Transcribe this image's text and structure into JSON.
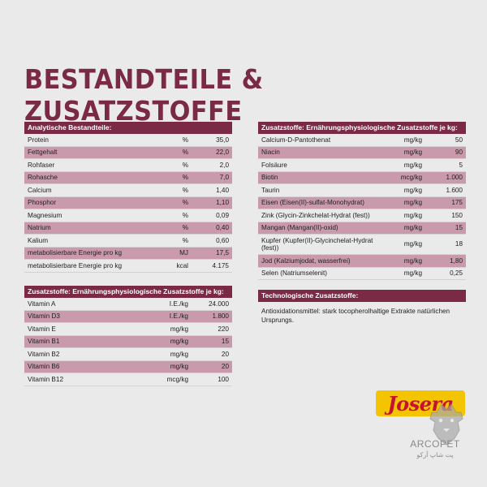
{
  "title": "Bestandteile & Zusatzstoffe",
  "analytic": {
    "header": "Analytische Bestandteile:",
    "rows": [
      {
        "name": "Protein",
        "unit": "%",
        "value": "35,0"
      },
      {
        "name": "Fettgehalt",
        "unit": "%",
        "value": "22,0"
      },
      {
        "name": "Rohfaser",
        "unit": "%",
        "value": "2,0"
      },
      {
        "name": "Rohasche",
        "unit": "%",
        "value": "7,0"
      },
      {
        "name": "Calcium",
        "unit": "%",
        "value": "1,40"
      },
      {
        "name": "Phosphor",
        "unit": "%",
        "value": "1,10"
      },
      {
        "name": "Magnesium",
        "unit": "%",
        "value": "0,09"
      },
      {
        "name": "Natrium",
        "unit": "%",
        "value": "0,40"
      },
      {
        "name": "Kalium",
        "unit": "%",
        "value": "0,60"
      },
      {
        "name": "metabolisierbare Energie pro kg",
        "unit": "MJ",
        "value": "17,5"
      },
      {
        "name": "metabolisierbare Energie pro kg",
        "unit": "kcal",
        "value": "4.175"
      }
    ]
  },
  "vitamins": {
    "header": "Zusatzstoffe: Ernährungsphysiologische Zusatzstoffe je kg:",
    "rows": [
      {
        "name": "Vitamin A",
        "unit": "I.E./kg",
        "value": "24.000"
      },
      {
        "name": "Vitamin D3",
        "unit": "I.E./kg",
        "value": "1.800"
      },
      {
        "name": "Vitamin E",
        "unit": "mg/kg",
        "value": "220"
      },
      {
        "name": "Vitamin B1",
        "unit": "mg/kg",
        "value": "15"
      },
      {
        "name": "Vitamin B2",
        "unit": "mg/kg",
        "value": "20"
      },
      {
        "name": "Vitamin B6",
        "unit": "mg/kg",
        "value": "20"
      },
      {
        "name": "Vitamin B12",
        "unit": "mcg/kg",
        "value": "100"
      }
    ]
  },
  "minerals": {
    "header": "Zusatzstoffe: Ernährungsphysiologische Zusatzstoffe je kg:",
    "rows": [
      {
        "name": "Calcium-D-Pantothenat",
        "unit": "mg/kg",
        "value": "50"
      },
      {
        "name": "Niacin",
        "unit": "mg/kg",
        "value": "90"
      },
      {
        "name": "Folsäure",
        "unit": "mg/kg",
        "value": "5"
      },
      {
        "name": "Biotin",
        "unit": "mcg/kg",
        "value": "1.000"
      },
      {
        "name": "Taurin",
        "unit": "mg/kg",
        "value": "1.600"
      },
      {
        "name": "Eisen (Eisen(II)-sulfat-Monohydrat)",
        "unit": "mg/kg",
        "value": "175"
      },
      {
        "name": "Zink (Glycin-Zinkchelat-Hydrat (fest))",
        "unit": "mg/kg",
        "value": "150"
      },
      {
        "name": "Mangan (Mangan(II)-oxid)",
        "unit": "mg/kg",
        "value": "15"
      },
      {
        "name": "Kupfer (Kupfer(II)-Glycinchelat-Hydrat (fest))",
        "unit": "mg/kg",
        "value": "18"
      },
      {
        "name": "Jod (Kalziumjodat, wasserfrei)",
        "unit": "mg/kg",
        "value": "1,80"
      },
      {
        "name": "Selen (Natriumselenit)",
        "unit": "mg/kg",
        "value": "0,25"
      }
    ]
  },
  "technological": {
    "header": "Technologische Zusatzstoffe:",
    "text": "Antioxidationsmittel: stark tocopherolhaltige Extrakte natürlichen Ursprungs."
  },
  "logo": {
    "text": "Josera"
  },
  "watermark": {
    "name": "ARCOPET",
    "sub": "پت شاپ آرکو"
  },
  "colors": {
    "accent": "#7a2a45",
    "shade": "#c99aab",
    "logo_bg": "#f5c400",
    "logo_text": "#c4122f"
  }
}
